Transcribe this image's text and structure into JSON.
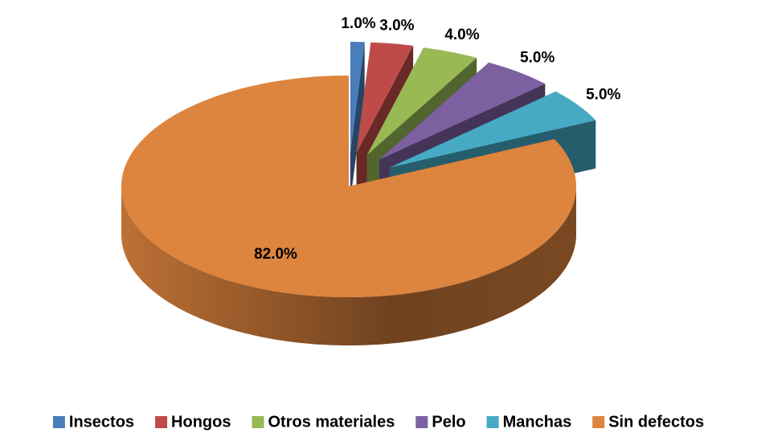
{
  "chart_data": {
    "type": "pie3d",
    "categories": [
      "Insectos",
      "Hongos",
      "Otros materiales",
      "Pelo",
      "Manchas",
      "Sin defectos"
    ],
    "values": [
      1.0,
      3.0,
      4.0,
      5.0,
      5.0,
      82.0
    ],
    "value_labels": [
      "1.0%",
      "3.0%",
      "4.0%",
      "5.0%",
      "5.0%",
      "82.0%"
    ],
    "colors": [
      "#4a7ebb",
      "#be4b48",
      "#98b954",
      "#7d60a0",
      "#46aac5",
      "#dd843e"
    ],
    "exploded": [
      true,
      true,
      true,
      true,
      true,
      false
    ],
    "legend": "bottom"
  }
}
